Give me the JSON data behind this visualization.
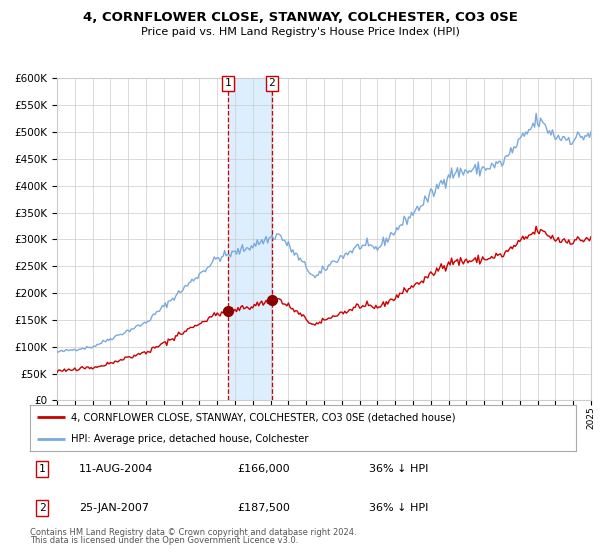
{
  "title": "4, CORNFLOWER CLOSE, STANWAY, COLCHESTER, CO3 0SE",
  "subtitle": "Price paid vs. HM Land Registry's House Price Index (HPI)",
  "legend_line1": "4, CORNFLOWER CLOSE, STANWAY, COLCHESTER, CO3 0SE (detached house)",
  "legend_line2": "HPI: Average price, detached house, Colchester",
  "transaction1_date": "11-AUG-2004",
  "transaction1_price": "£166,000",
  "transaction1_hpi": "36% ↓ HPI",
  "transaction1_year": 2004.6,
  "transaction1_value": 166000,
  "transaction2_date": "25-JAN-2007",
  "transaction2_price": "£187,500",
  "transaction2_hpi": "36% ↓ HPI",
  "transaction2_year": 2007.07,
  "transaction2_value": 187500,
  "footnote1": "Contains HM Land Registry data © Crown copyright and database right 2024.",
  "footnote2": "This data is licensed under the Open Government Licence v3.0.",
  "red_color": "#cc0000",
  "blue_color": "#7aaadd",
  "background_color": "#ffffff",
  "grid_color": "#cccccc",
  "highlight_color": "#ddeeff",
  "ylim_max": 600000,
  "xlim_start": 1995,
  "xlim_end": 2025
}
